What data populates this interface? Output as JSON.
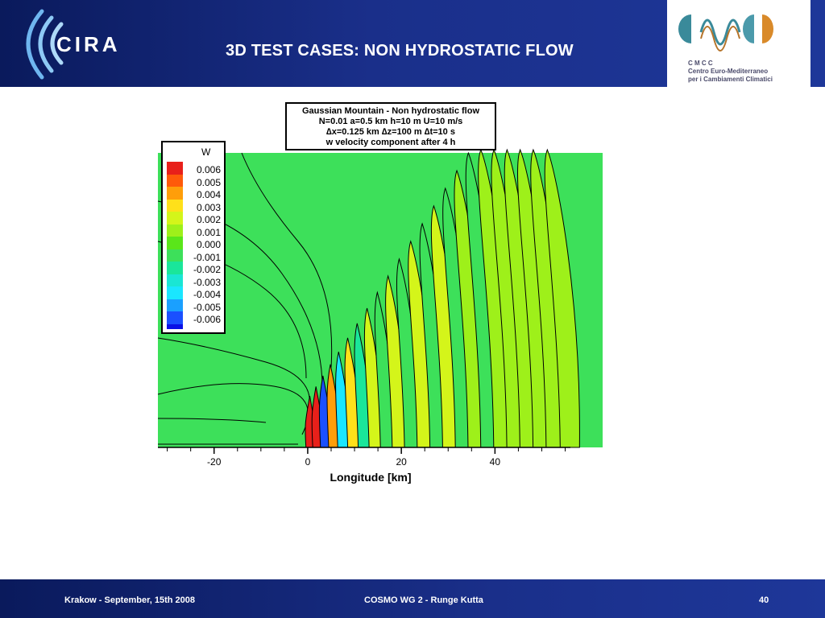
{
  "slide": {
    "title": "3D TEST CASES:  NON HYDROSTATIC FLOW",
    "logo_left": "CIRA",
    "logo_right": {
      "acronym": "C M C C",
      "line1": "Centro Euro-Mediterraneo",
      "line2": "per i Cambiamenti Climatici"
    },
    "footer": {
      "left": "Krakow - September, 15th 2008",
      "center": "COSMO WG 2 - Runge Kutta",
      "page": "40"
    },
    "colors": {
      "header_blue": "#1a2f8a",
      "plot_green": "#3de05a"
    }
  },
  "chart_data": {
    "type": "heatmap",
    "title_lines": [
      "Gaussian Mountain - Non hydrostatic flow",
      "N=0.01  a=0.5 km  h=10 m  U=10 m/s",
      "∆x=0.125 km  ∆z=100 m  ∆t=10 s",
      "w velocity component after 4 h"
    ],
    "xlabel": "Longitude [km]",
    "xticks": [
      -20,
      0,
      20,
      40
    ],
    "xlim": [
      -32,
      63
    ],
    "variable": "W",
    "legend_levels": [
      {
        "value": "0.006",
        "color": "#e8201a"
      },
      {
        "value": "0.005",
        "color": "#ff5a0a"
      },
      {
        "value": "0.004",
        "color": "#ff9e0a"
      },
      {
        "value": "0.003",
        "color": "#ffe01a"
      },
      {
        "value": "0.002",
        "color": "#d4f51a"
      },
      {
        "value": "0.001",
        "color": "#9ef01a"
      },
      {
        "value": "0.000",
        "color": "#5ae61a"
      },
      {
        "value": "-0.001",
        "color": "#3de05a"
      },
      {
        "value": "-0.002",
        "color": "#1ae69a"
      },
      {
        "value": "-0.003",
        "color": "#1ae6d4"
      },
      {
        "value": "-0.004",
        "color": "#1ae6ff"
      },
      {
        "value": "-0.005",
        "color": "#1aa0ff"
      },
      {
        "value": "-0.006",
        "color": "#1a50ff"
      }
    ],
    "legend_below_min_color": "#0a10e6",
    "legend_placement": "top-left",
    "wave_bands": [
      {
        "x": 0.5,
        "w": 0.006
      },
      {
        "x": 2.0,
        "w": 0.006
      },
      {
        "x": 3.7,
        "w": -0.006
      },
      {
        "x": 5.5,
        "w": 0.004
      },
      {
        "x": 7.5,
        "w": -0.004
      },
      {
        "x": 9.7,
        "w": 0.003
      },
      {
        "x": 12.0,
        "w": -0.002
      },
      {
        "x": 14.4,
        "w": 0.002
      },
      {
        "x": 16.9,
        "w": -0.001
      },
      {
        "x": 19.5,
        "w": 0.002
      },
      {
        "x": 22.2,
        "w": -0.001
      },
      {
        "x": 25.0,
        "w": 0.002
      },
      {
        "x": 27.8,
        "w": -0.001
      },
      {
        "x": 30.6,
        "w": 0.002
      },
      {
        "x": 33.4,
        "w": -0.001
      },
      {
        "x": 36.2,
        "w": 0.001
      },
      {
        "x": 39.0,
        "w": -0.001
      },
      {
        "x": 41.8,
        "w": 0.001
      },
      {
        "x": 44.6,
        "w": 0.001
      },
      {
        "x": 47.4,
        "w": 0.001
      },
      {
        "x": 50.2,
        "w": 0.001
      },
      {
        "x": 53.0,
        "w": 0.001
      },
      {
        "x": 56.0,
        "w": 0.001
      }
    ]
  }
}
